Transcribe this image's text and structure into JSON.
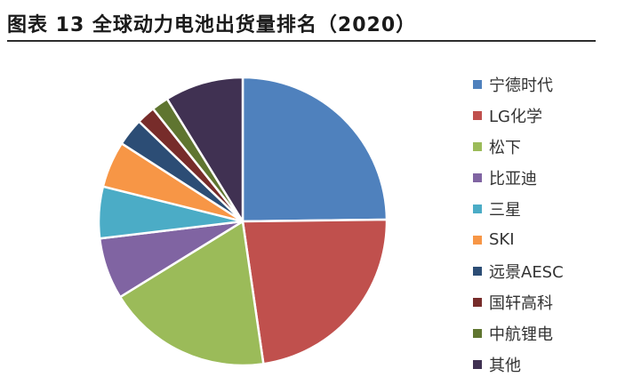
{
  "figure": {
    "title": "图表 13 全球动力电池出货量排名（2020）"
  },
  "chart_data": {
    "type": "pie",
    "title": "",
    "categories": [
      "宁德时代",
      "LG化学",
      "松下",
      "比亚迪",
      "三星",
      "SKI",
      "远景AESC",
      "国轩高科",
      "中航锂电",
      "其他"
    ],
    "values": [
      24.8,
      22.9,
      18.5,
      6.9,
      5.8,
      5.2,
      3.1,
      2.1,
      1.9,
      8.8
    ],
    "colors": [
      "#4F81BD",
      "#C0504D",
      "#9BBB59",
      "#8064A2",
      "#4BACC6",
      "#F79646",
      "#2C4D75",
      "#772C2A",
      "#5F7530",
      "#403152"
    ],
    "start_angle": "12 o'clock, clockwise",
    "legend_position": "right"
  }
}
